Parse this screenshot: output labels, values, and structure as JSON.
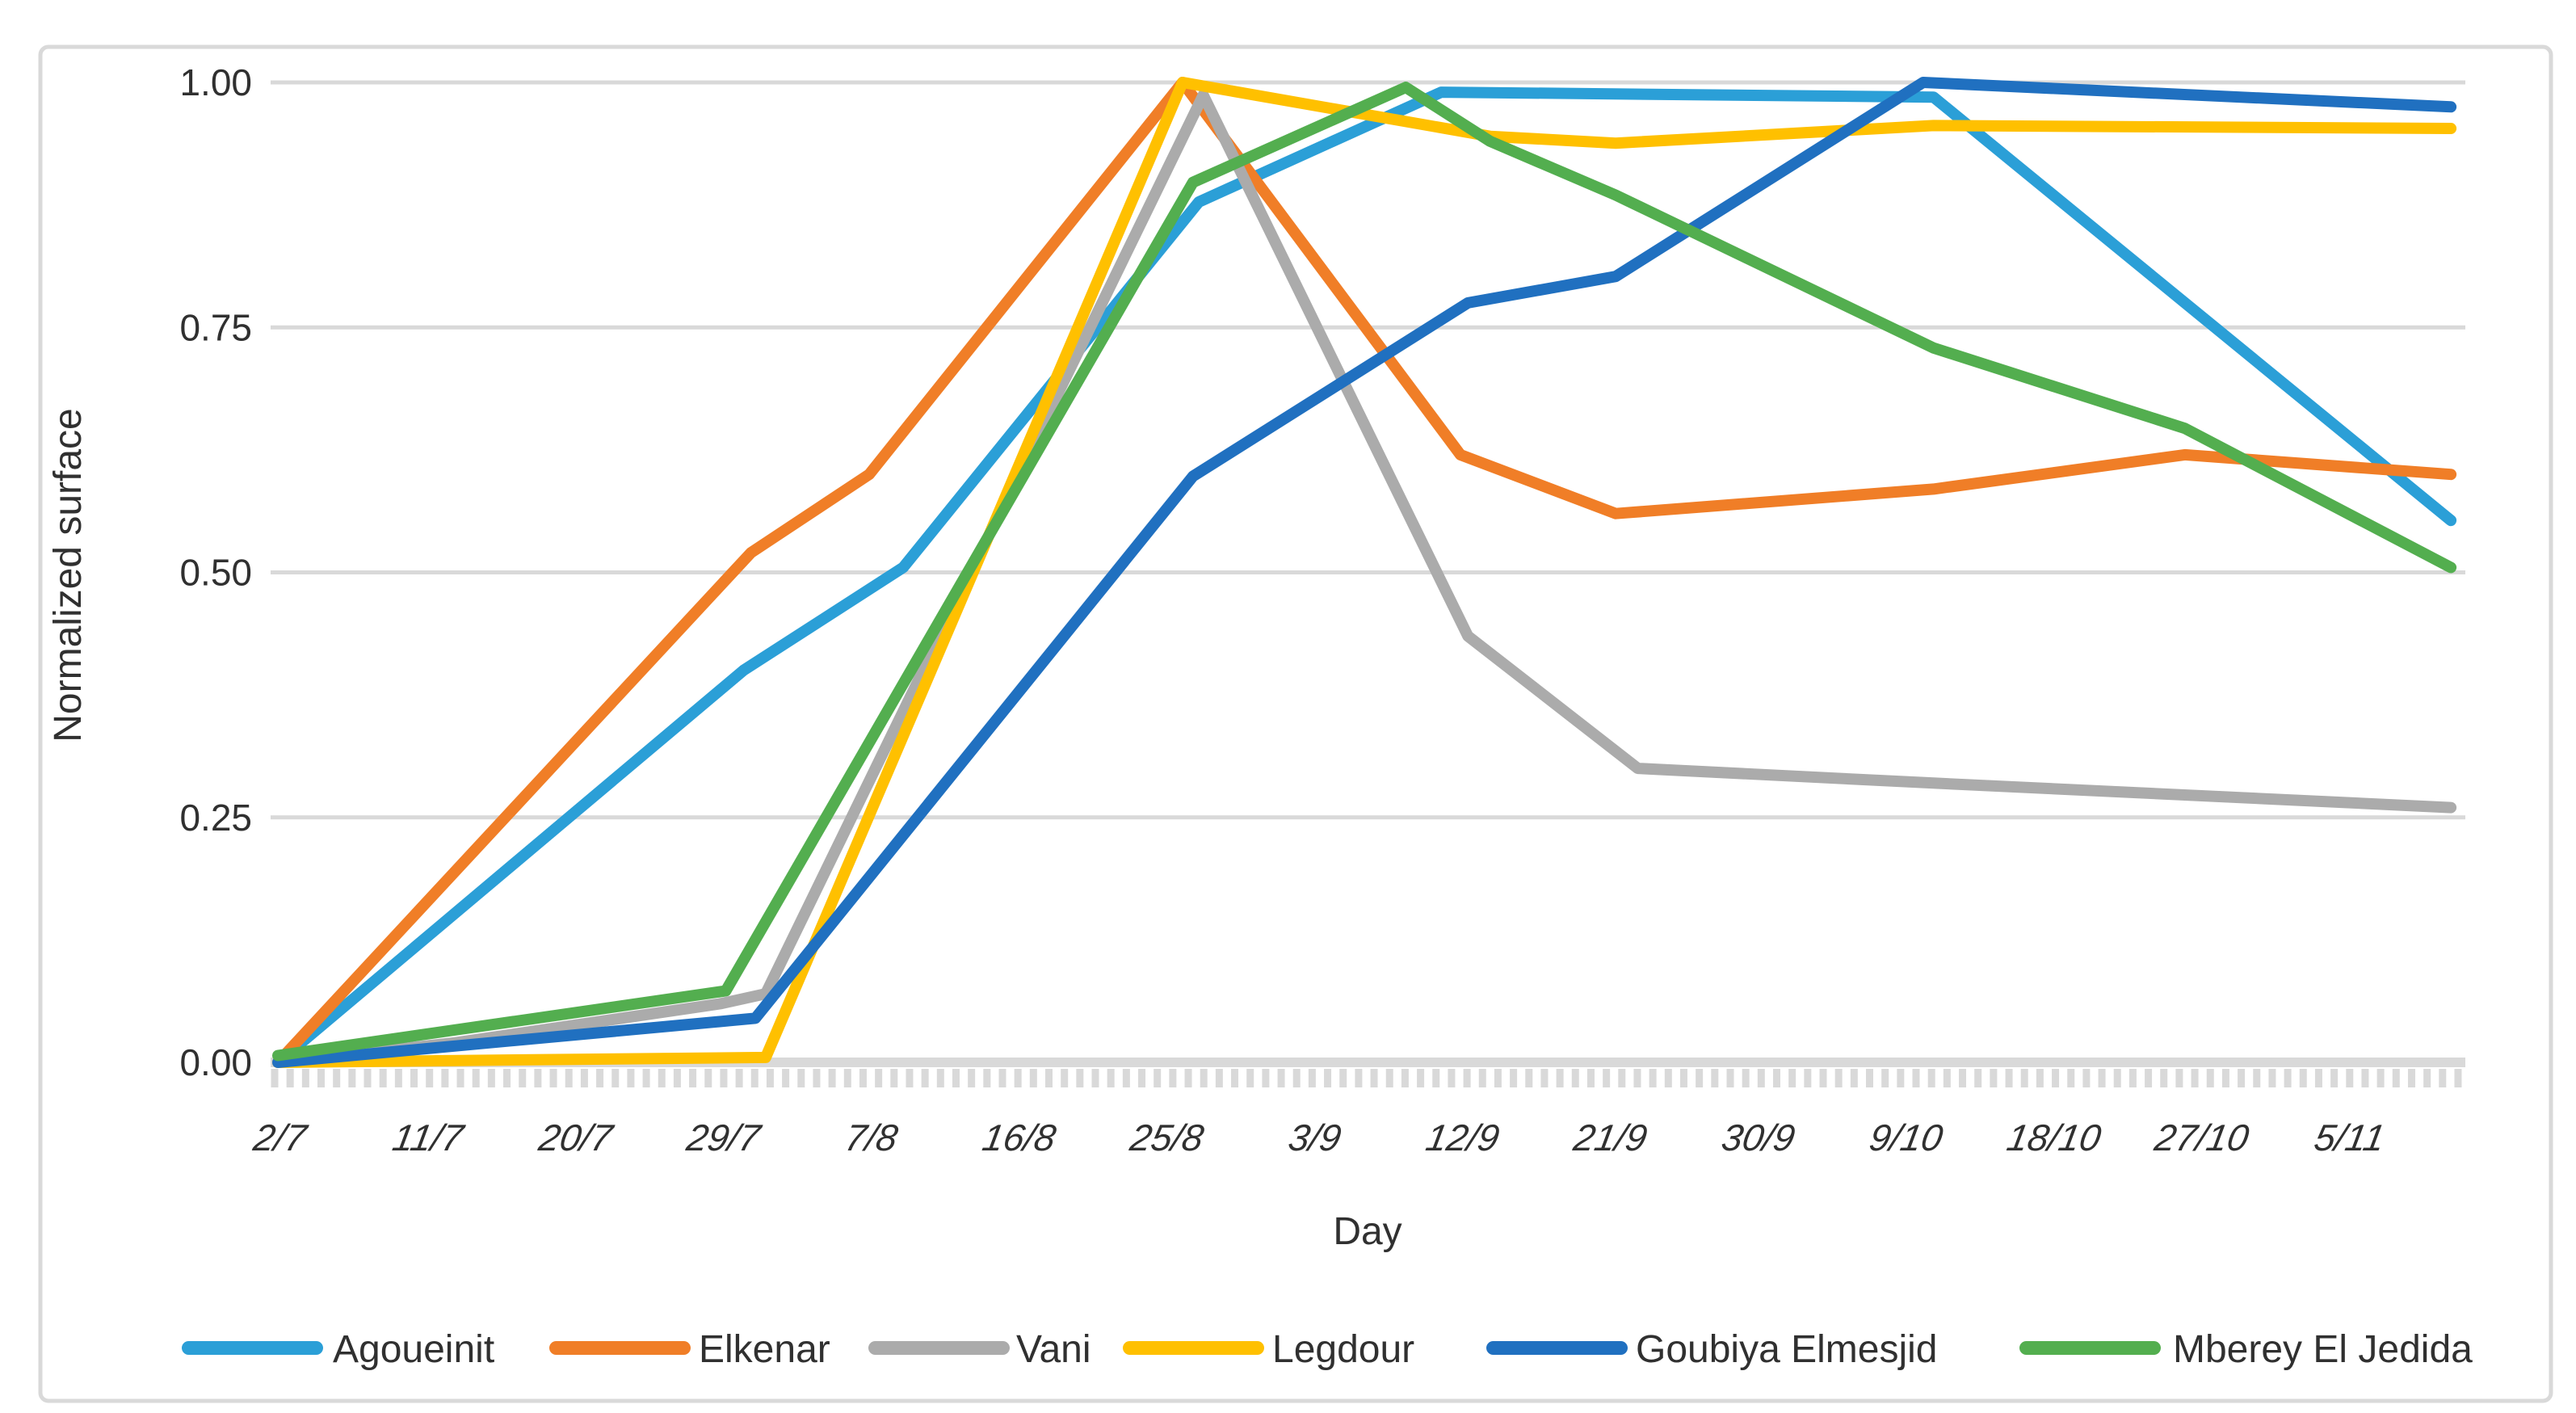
{
  "chart_data": {
    "type": "line",
    "title": "",
    "xlabel": "Day",
    "ylabel": "Normalized surface",
    "ylim": [
      0,
      1
    ],
    "yticks": [
      1.0,
      0.75,
      0.5,
      0.25,
      0.0
    ],
    "ytick_labels": [
      "1.00",
      "0.75",
      "0.50",
      "0.25",
      "0.00"
    ],
    "xtick_labels": [
      "2/7",
      "11/7",
      "20/7",
      "29/7",
      "7/8",
      "16/8",
      "25/8",
      "3/9",
      "12/9",
      "21/9",
      "30/9",
      "9/10",
      "18/10",
      "27/10",
      "5/11"
    ],
    "x_unit": "axis-label index; adjacent x labels are 9 days apart",
    "grid": true,
    "grid_color": "#D9D9D9",
    "text_color": "#303030",
    "legend_position": "bottom",
    "series": [
      {
        "name": "Agoueinit",
        "color": "#2B9FD7",
        "points": [
          [
            0,
            0.0
          ],
          [
            3.15,
            0.4
          ],
          [
            4.23,
            0.505
          ],
          [
            6.23,
            0.878
          ],
          [
            7.87,
            0.99
          ],
          [
            11.2,
            0.985
          ],
          [
            14.7,
            0.553
          ]
        ]
      },
      {
        "name": "Elkenar",
        "color": "#F07E27",
        "points": [
          [
            0,
            0.0
          ],
          [
            3.2,
            0.52
          ],
          [
            4.0,
            0.6
          ],
          [
            6.12,
            1.0
          ],
          [
            8.0,
            0.62
          ],
          [
            9.05,
            0.56
          ],
          [
            11.2,
            0.585
          ],
          [
            12.9,
            0.62
          ],
          [
            14.7,
            0.6
          ]
        ]
      },
      {
        "name": "Vani",
        "color": "#ABABAB",
        "points": [
          [
            0,
            0.0
          ],
          [
            1.2,
            0.02
          ],
          [
            3.0,
            0.06
          ],
          [
            3.3,
            0.07
          ],
          [
            6.26,
            0.987
          ],
          [
            8.05,
            0.435
          ],
          [
            9.2,
            0.3
          ],
          [
            11.2,
            0.285
          ],
          [
            14.7,
            0.26
          ]
        ]
      },
      {
        "name": "Legdour",
        "color": "#FFC000",
        "points": [
          [
            0,
            0.0
          ],
          [
            3.3,
            0.005
          ],
          [
            6.12,
            1.0
          ],
          [
            8.2,
            0.945
          ],
          [
            9.05,
            0.938
          ],
          [
            11.2,
            0.956
          ],
          [
            14.7,
            0.953
          ]
        ]
      },
      {
        "name": "Goubiya Elmesjid",
        "color": "#2070C0",
        "points": [
          [
            0,
            0.0
          ],
          [
            3.23,
            0.045
          ],
          [
            6.19,
            0.598
          ],
          [
            8.05,
            0.775
          ],
          [
            9.05,
            0.802
          ],
          [
            11.13,
            1.0
          ],
          [
            14.7,
            0.975
          ]
        ]
      },
      {
        "name": "Mberey El Jedida",
        "color": "#53AE4F",
        "points": [
          [
            0,
            0.007
          ],
          [
            3.03,
            0.073
          ],
          [
            6.19,
            0.898
          ],
          [
            7.63,
            0.995
          ],
          [
            8.2,
            0.94
          ],
          [
            9.05,
            0.885
          ],
          [
            11.2,
            0.729
          ],
          [
            12.9,
            0.647
          ],
          [
            14.7,
            0.505
          ]
        ]
      }
    ],
    "legend_items": [
      {
        "label": "Agoueinit"
      },
      {
        "label": "Elkenar"
      },
      {
        "label": "Vani"
      },
      {
        "label": "Legdour"
      },
      {
        "label": "Goubiya Elmesjid"
      },
      {
        "label": "Mberey El Jedida"
      }
    ]
  }
}
